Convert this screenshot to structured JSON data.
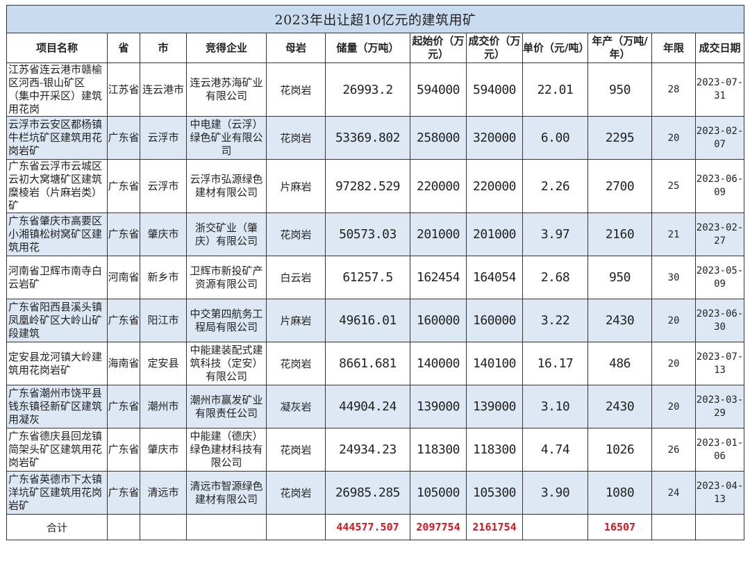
{
  "title": "2023年出让超10亿元的建筑用矿",
  "headers": [
    "项目名称",
    "省",
    "市",
    "竞得企业",
    "母岩",
    "储量（万吨）",
    "起始价（万元）",
    "成交价（万元）",
    "单价（元/吨）",
    "年产（万吨/年）",
    "年限",
    "成交日期"
  ],
  "rows": [
    {
      "name": "江苏省连云港市赣榆区河西-银山矿区（集中开采区）建筑用花岗",
      "province": "江苏省",
      "city": "连云港市",
      "company": "连云港苏海矿业有限公司",
      "rock": "花岗岩",
      "reserve": "26993.2",
      "start_price": "594000",
      "deal_price": "594000",
      "unit_price": "22.01",
      "annual": "950",
      "years": "28",
      "date": "2023-07-31"
    },
    {
      "name": "云浮市云安区都杨镇牛栏坑矿区建筑用花岗岩矿",
      "province": "广东省",
      "city": "云浮市",
      "company": "中电建（云浮）绿色矿业有限公司",
      "rock": "花岗岩",
      "reserve": "53369.802",
      "start_price": "258000",
      "deal_price": "320000",
      "unit_price": "6.00",
      "annual": "2295",
      "years": "20",
      "date": "2023-02-07"
    },
    {
      "name": "广东省云浮市云城区云初大窝塘矿区建筑糜棱岩（片麻岩类）矿",
      "province": "广东省",
      "city": "云浮市",
      "company": "云浮市弘源绿色建材有限公司",
      "rock": "片麻岩",
      "reserve": "97282.529",
      "start_price": "220000",
      "deal_price": "220000",
      "unit_price": "2.26",
      "annual": "2700",
      "years": "25",
      "date": "2023-06-09"
    },
    {
      "name": "广东省肇庆市高要区小湘镇松树窝矿区建筑用花",
      "province": "广东省",
      "city": "肇庆市",
      "company": "浙交矿业（肇庆）有限公司",
      "rock": "花岗岩",
      "reserve": "50573.03",
      "start_price": "201000",
      "deal_price": "201000",
      "unit_price": "3.97",
      "annual": "2160",
      "years": "21",
      "date": "2023-02-27"
    },
    {
      "name": "河南省卫辉市南寺白云岩矿",
      "province": "河南省",
      "city": "新乡市",
      "company": "卫辉市新投矿产资源有限公司",
      "rock": "白云岩",
      "reserve": "61257.5",
      "start_price": "162454",
      "deal_price": "164054",
      "unit_price": "2.68",
      "annual": "950",
      "years": "30",
      "date": "2023-05-09"
    },
    {
      "name": "广东省阳西县溪头镇凤凰岭矿区大岭山矿段建筑",
      "province": "广东省",
      "city": "阳江市",
      "company": "中交第四航务工程局有限公司",
      "rock": "片麻岩",
      "reserve": "49616.01",
      "start_price": "160000",
      "deal_price": "160000",
      "unit_price": "3.22",
      "annual": "2430",
      "years": "20",
      "date": "2023-06-30"
    },
    {
      "name": "定安县龙河镇大岭建筑用花岗岩矿",
      "province": "海南省",
      "city": "定安县",
      "company": "中能建装配式建筑科技（定安）有限公司",
      "rock": "花岗岩",
      "reserve": "8661.681",
      "start_price": "140000",
      "deal_price": "140100",
      "unit_price": "16.17",
      "annual": "486",
      "years": "20",
      "date": "2023-07-13"
    },
    {
      "name": "广东省潮州市饶平县钱东镇径新矿区建筑用凝灰",
      "province": "广东省",
      "city": "潮州市",
      "company": "潮州市赢发矿业有限责任公司",
      "rock": "凝灰岩",
      "reserve": "44904.24",
      "start_price": "139000",
      "deal_price": "139000",
      "unit_price": "3.10",
      "annual": "2430",
      "years": "20",
      "date": "2023-03-29"
    },
    {
      "name": "广东省德庆县回龙镇简架头矿区建筑用花岗岩矿",
      "province": "广东省",
      "city": "肇庆市",
      "company": "中能建（德庆）绿色建材科技有限公司",
      "rock": "花岗岩",
      "reserve": "24934.23",
      "start_price": "118300",
      "deal_price": "118300",
      "unit_price": "4.74",
      "annual": "1026",
      "years": "26",
      "date": "2023-01-06"
    },
    {
      "name": "广东省英德市下太镇洋坑矿区建筑用花岗岩矿",
      "province": "广东省",
      "city": "清远市",
      "company": "清远市智源绿色建材有限公司",
      "rock": "花岗岩",
      "reserve": "26985.285",
      "start_price": "105000",
      "deal_price": "105300",
      "unit_price": "3.90",
      "annual": "1080",
      "years": "24",
      "date": "2023-04-13"
    }
  ],
  "total": {
    "label": "合计",
    "reserve": "444577.507",
    "start_price": "2097754",
    "deal_price": "2161754",
    "annual": "16507"
  },
  "colors": {
    "title_bg": "#c9dcef",
    "alt_row_bg": "#dde8f4",
    "total_text": "#d01820"
  }
}
